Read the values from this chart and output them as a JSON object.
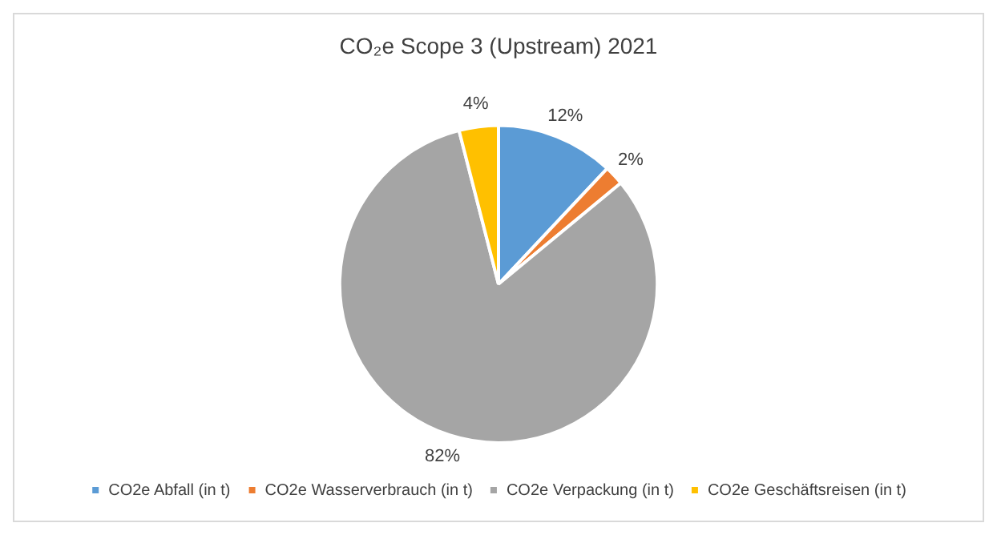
{
  "chart_data": {
    "type": "pie",
    "title": "CO₂e Scope 3 (Upstream) 2021",
    "categories": [
      "CO2e Abfall (in t)",
      "CO2e Wasserverbrauch (in t)",
      "CO2e Verpackung (in t)",
      "CO2e Geschäftsreisen (in t)"
    ],
    "values": [
      12,
      2,
      82,
      4
    ],
    "colors": [
      "#5b9bd5",
      "#ed7d31",
      "#a5a5a5",
      "#ffc000"
    ],
    "value_labels": [
      "12%",
      "2%",
      "82%",
      "4%"
    ],
    "legend": "bottom"
  }
}
